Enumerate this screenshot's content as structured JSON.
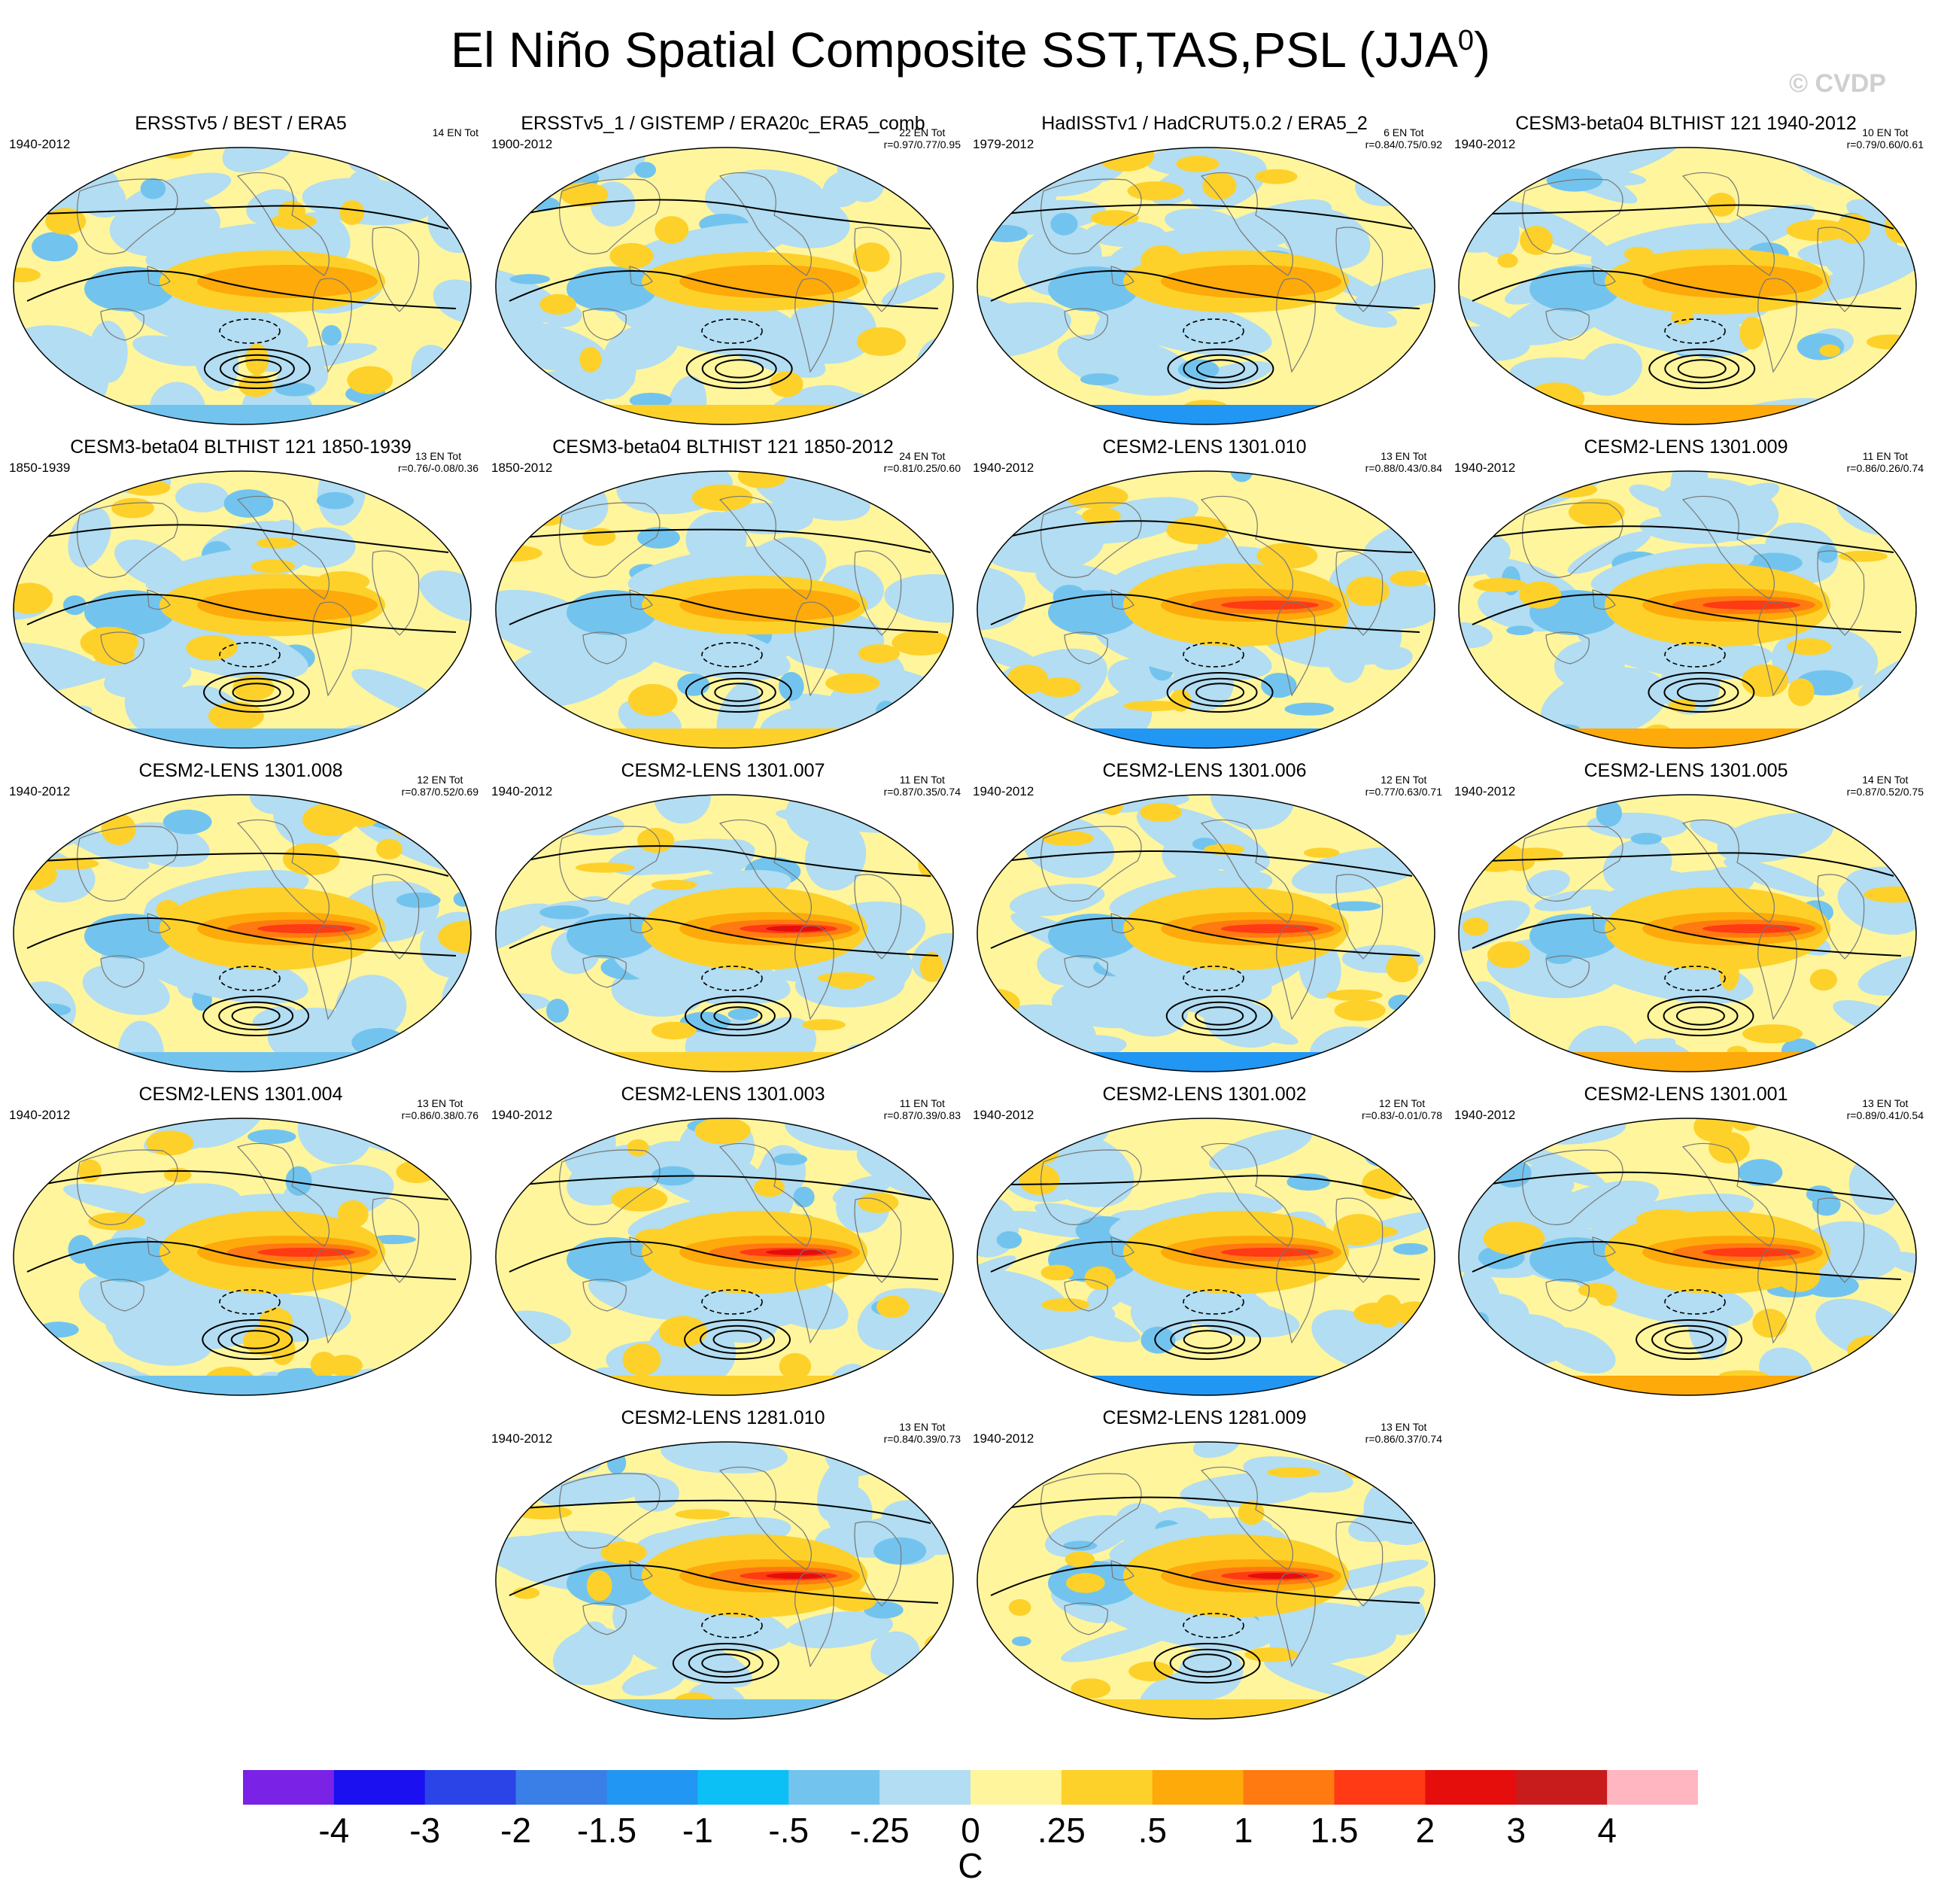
{
  "title": {
    "main": "El Niño Spatial Composite SST,TAS,PSL (JJA",
    "sup": "0",
    "close": ")"
  },
  "watermark": "© CVDP",
  "panels": [
    {
      "title": "ERSSTv5 / BEST / ERA5",
      "years": "1940-2012",
      "count": "14 EN Tot",
      "corr": "",
      "intensity": 0.9,
      "seed": 1
    },
    {
      "title": "ERSSTv5_1 / GISTEMP / ERA20c_ERA5_comb",
      "years": "1900-2012",
      "count": "22 EN Tot",
      "corr": "r=0.97/0.77/0.95",
      "intensity": 0.85,
      "seed": 2
    },
    {
      "title": "HadISSTv1 / HadCRUT5.0.2 / ERA5_2",
      "years": "1979-2012",
      "count": "6 EN Tot",
      "corr": "r=0.84/0.75/0.92",
      "intensity": 0.9,
      "seed": 3
    },
    {
      "title": "CESM3-beta04 BLTHIST 121 1940-2012",
      "years": "1940-2012",
      "count": "10 EN Tot",
      "corr": "r=0.79/0.60/0.61",
      "intensity": 0.95,
      "seed": 4
    },
    {
      "title": "CESM3-beta04 BLTHIST 121 1850-1939",
      "years": "1850-1939",
      "count": "13 EN Tot",
      "corr": "r=0.76/-0.08/0.36",
      "intensity": 0.9,
      "seed": 5
    },
    {
      "title": "CESM3-beta04 BLTHIST 121 1850-2012",
      "years": "1850-2012",
      "count": "24 EN Tot",
      "corr": "r=0.81/0.25/0.60",
      "intensity": 0.85,
      "seed": 6
    },
    {
      "title": "CESM2-LENS 1301.010",
      "years": "1940-2012",
      "count": "13 EN Tot",
      "corr": "r=0.88/0.43/0.84",
      "intensity": 1.3,
      "seed": 7
    },
    {
      "title": "CESM2-LENS 1301.009",
      "years": "1940-2012",
      "count": "11 EN Tot",
      "corr": "r=0.86/0.26/0.74",
      "intensity": 1.25,
      "seed": 8
    },
    {
      "title": "CESM2-LENS 1301.008",
      "years": "1940-2012",
      "count": "12 EN Tot",
      "corr": "r=0.87/0.52/0.69",
      "intensity": 1.3,
      "seed": 9
    },
    {
      "title": "CESM2-LENS 1301.007",
      "years": "1940-2012",
      "count": "11 EN Tot",
      "corr": "r=0.87/0.35/0.74",
      "intensity": 1.4,
      "seed": 10
    },
    {
      "title": "CESM2-LENS 1301.006",
      "years": "1940-2012",
      "count": "12 EN Tot",
      "corr": "r=0.77/0.63/0.71",
      "intensity": 1.2,
      "seed": 11
    },
    {
      "title": "CESM2-LENS 1301.005",
      "years": "1940-2012",
      "count": "14 EN Tot",
      "corr": "r=0.87/0.52/0.75",
      "intensity": 1.2,
      "seed": 12
    },
    {
      "title": "CESM2-LENS 1301.004",
      "years": "1940-2012",
      "count": "13 EN Tot",
      "corr": "r=0.86/0.38/0.76",
      "intensity": 1.2,
      "seed": 13
    },
    {
      "title": "CESM2-LENS 1301.003",
      "years": "1940-2012",
      "count": "11 EN Tot",
      "corr": "r=0.87/0.39/0.83",
      "intensity": 1.4,
      "seed": 14
    },
    {
      "title": "CESM2-LENS 1301.002",
      "years": "1940-2012",
      "count": "12 EN Tot",
      "corr": "r=0.83/-0.01/0.78",
      "intensity": 1.2,
      "seed": 15
    },
    {
      "title": "CESM2-LENS 1301.001",
      "years": "1940-2012",
      "count": "13 EN Tot",
      "corr": "r=0.89/0.41/0.54",
      "intensity": 1.25,
      "seed": 16
    },
    {
      "title": "CESM2-LENS 1281.010",
      "years": "1940-2012",
      "count": "13 EN Tot",
      "corr": "r=0.84/0.39/0.73",
      "intensity": 1.35,
      "seed": 17
    },
    {
      "title": "CESM2-LENS 1281.009",
      "years": "1940-2012",
      "count": "13 EN Tot",
      "corr": "r=0.86/0.37/0.74",
      "intensity": 1.35,
      "seed": 18
    }
  ],
  "colorbar": {
    "unit": "C",
    "labels": [
      "-4",
      "-3",
      "-2",
      "-1.5",
      "-1",
      "-.5",
      "-.25",
      "0",
      ".25",
      ".5",
      "1",
      "1.5",
      "2",
      "3",
      "4"
    ],
    "colors": [
      "#7a22e6",
      "#1a10f0",
      "#2a44e8",
      "#3a7ee8",
      "#2196f3",
      "#0cc0f5",
      "#72c4ee",
      "#b2ddf2",
      "#fff59c",
      "#fdd12a",
      "#fdaa0a",
      "#ff7a10",
      "#ff3a14",
      "#e60d0d",
      "#c81c1c",
      "#ffb6c1"
    ]
  }
}
